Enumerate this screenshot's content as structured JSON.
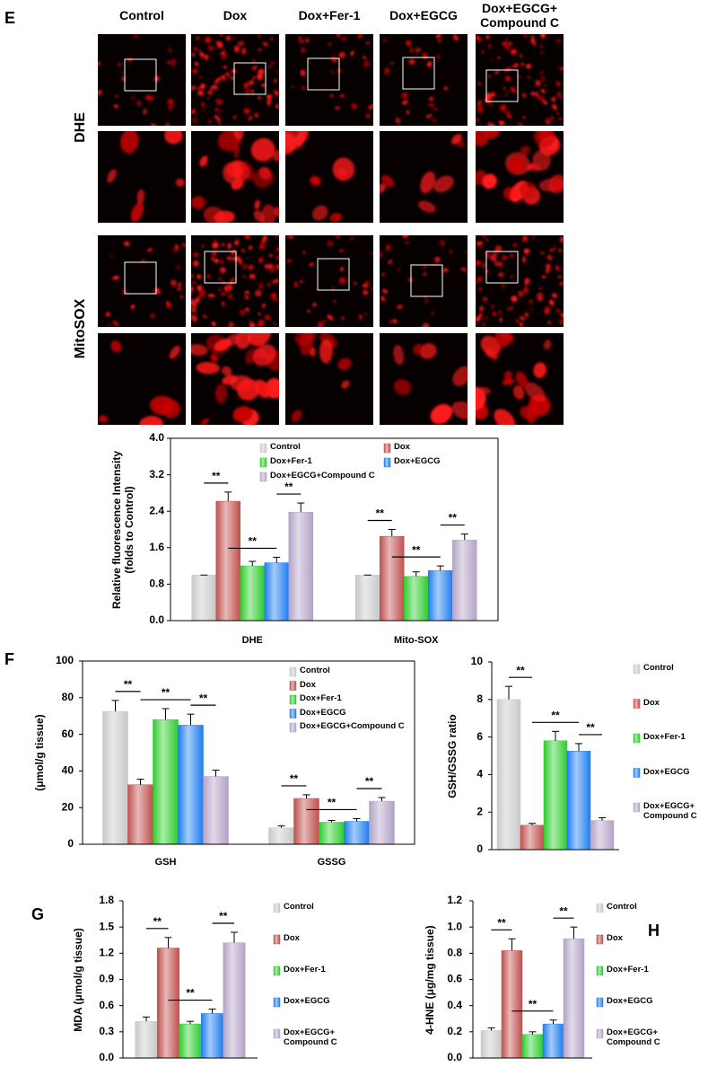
{
  "figure": {
    "panel_labels": [
      "E",
      "F",
      "G",
      "H"
    ],
    "image_columns": [
      "Control",
      "Dox",
      "Dox+Fer-1",
      "Dox+EGCG",
      "Dox+EGCG+ Compound C"
    ],
    "image_rows": [
      "DHE",
      "MitoSOX"
    ]
  },
  "chart_data": [
    {
      "type": "bar",
      "y_label": "Relative fluorescence Intensity (folds to Control)",
      "categories": [
        "DHE",
        "Mito-SOX"
      ],
      "series": [
        {
          "name": "Control",
          "color": "#c8c8c8",
          "values": [
            1.0,
            1.0
          ],
          "errors": [
            0,
            0
          ]
        },
        {
          "name": "Dox",
          "color": "#c0504d",
          "values": [
            2.62,
            1.85
          ],
          "errors": [
            0.2,
            0.15
          ]
        },
        {
          "name": "Dox+Fer-1",
          "color": "#2ecc2e",
          "values": [
            1.2,
            0.97
          ],
          "errors": [
            0.1,
            0.1
          ]
        },
        {
          "name": "Dox+EGCG",
          "color": "#1e7ef0",
          "values": [
            1.27,
            1.1
          ],
          "errors": [
            0.12,
            0.1
          ]
        },
        {
          "name": "Dox+EGCG+Compound C",
          "color": "#b3a2c7",
          "values": [
            2.38,
            1.77
          ],
          "errors": [
            0.2,
            0.13
          ]
        }
      ],
      "ylim": [
        0,
        4
      ],
      "yticks": [
        {
          "value": 0,
          "label": "0.0"
        },
        0.8,
        1.6,
        2.4,
        3.2,
        {
          "value": 4,
          "label": "4.0"
        }
      ],
      "frame": true,
      "legend": "top",
      "annotations": [
        "**",
        "**",
        "**",
        "**",
        "**",
        "**"
      ]
    },
    {
      "type": "bar",
      "y_label": "(μmol/g tissue)",
      "categories": [
        "GSH",
        "GSSG"
      ],
      "series": [
        {
          "name": "Control",
          "color": "#c8c8c8",
          "values": [
            72.5,
            9
          ],
          "errors": [
            6,
            1
          ]
        },
        {
          "name": "Dox",
          "color": "#c0504d",
          "values": [
            32.5,
            25
          ],
          "errors": [
            3,
            2
          ]
        },
        {
          "name": "Dox+Fer-1",
          "color": "#2ecc2e",
          "values": [
            68,
            12
          ],
          "errors": [
            6,
            1
          ]
        },
        {
          "name": "Dox+EGCG",
          "color": "#1e7ef0",
          "values": [
            65,
            12.5
          ],
          "errors": [
            6,
            1.5
          ]
        },
        {
          "name": "Dox+EGCG+Compound C",
          "color": "#b3a2c7",
          "values": [
            37,
            23.5
          ],
          "errors": [
            3.5,
            2
          ]
        }
      ],
      "ylim": [
        0,
        100
      ],
      "yticks": [
        0,
        20,
        40,
        60,
        80,
        100
      ],
      "frame": true,
      "legend": "top-right",
      "annotations": [
        "**",
        "**",
        "**",
        "**",
        "**",
        "**"
      ]
    },
    {
      "type": "bar",
      "y_label": "GSH/GSSG ratio",
      "categories": [
        null
      ],
      "series": [
        {
          "name": "Control",
          "color": "#c8c8c8",
          "values": [
            8.0
          ],
          "errors": [
            0.7
          ]
        },
        {
          "name": "Dox",
          "color": "#c0504d",
          "values": [
            1.3
          ],
          "errors": [
            0.1
          ]
        },
        {
          "name": "Dox+Fer-1",
          "color": "#2ecc2e",
          "values": [
            5.8
          ],
          "errors": [
            0.5
          ]
        },
        {
          "name": "Dox+EGCG",
          "color": "#1e7ef0",
          "values": [
            5.25
          ],
          "errors": [
            0.4
          ]
        },
        {
          "name": "Dox+EGCG+ Compound C",
          "color": "#b3a2c7",
          "values": [
            1.55
          ],
          "errors": [
            0.15
          ]
        }
      ],
      "ylim": [
        0,
        10
      ],
      "yticks": [
        0,
        2,
        4,
        6,
        8,
        10
      ],
      "frame": false,
      "legend": "right",
      "annotations": [
        "**",
        "**",
        "**"
      ]
    },
    {
      "type": "bar",
      "y_label": "MDA (μmol/g tissue)",
      "categories": [
        null
      ],
      "series": [
        {
          "name": "Control",
          "color": "#c8c8c8",
          "values": [
            0.42
          ],
          "errors": [
            0.05
          ]
        },
        {
          "name": "Dox",
          "color": "#c0504d",
          "values": [
            1.26
          ],
          "errors": [
            0.12
          ]
        },
        {
          "name": "Dox+Fer-1",
          "color": "#2ecc2e",
          "values": [
            0.39
          ],
          "errors": [
            0.03
          ]
        },
        {
          "name": "Dox+EGCG",
          "color": "#1e7ef0",
          "values": [
            0.51
          ],
          "errors": [
            0.05
          ]
        },
        {
          "name": "Dox+EGCG+ Compound C",
          "color": "#b3a2c7",
          "values": [
            1.32
          ],
          "errors": [
            0.12
          ]
        }
      ],
      "ylim": [
        0,
        1.8
      ],
      "yticks": [
        {
          "value": 0,
          "label": "0.0"
        },
        0.3,
        0.6,
        0.9,
        1.2,
        1.5,
        1.8
      ],
      "frame": false,
      "legend": "right",
      "annotations": [
        "**",
        "**",
        "**"
      ]
    },
    {
      "type": "bar",
      "y_label": "4-HNE (μg/mg tissue)",
      "categories": [
        null
      ],
      "series": [
        {
          "name": "Control",
          "color": "#c8c8c8",
          "values": [
            0.21
          ],
          "errors": [
            0.02
          ]
        },
        {
          "name": "Dox",
          "color": "#c0504d",
          "values": [
            0.82
          ],
          "errors": [
            0.09
          ]
        },
        {
          "name": "Dox+Fer-1",
          "color": "#2ecc2e",
          "values": [
            0.18
          ],
          "errors": [
            0.02
          ]
        },
        {
          "name": "Dox+EGCG",
          "color": "#1e7ef0",
          "values": [
            0.26
          ],
          "errors": [
            0.03
          ]
        },
        {
          "name": "Dox+EGCG+ Compound C",
          "color": "#b3a2c7",
          "values": [
            0.91
          ],
          "errors": [
            0.09
          ]
        }
      ],
      "ylim": [
        0,
        1.2
      ],
      "yticks": [
        {
          "value": 0,
          "label": "0.0"
        },
        0.2,
        0.4,
        0.6,
        0.8,
        {
          "value": 1,
          "label": "1.0"
        },
        1.2
      ],
      "frame": false,
      "legend": "right",
      "annotations": [
        "**",
        "**",
        "**"
      ]
    }
  ]
}
